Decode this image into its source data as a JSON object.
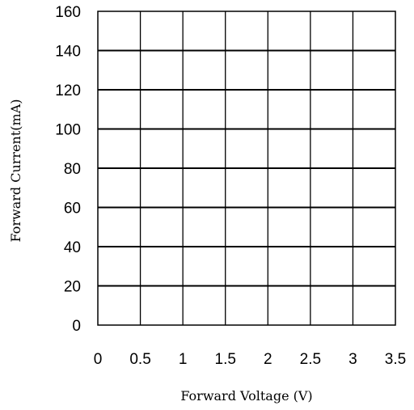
{
  "chart_data": {
    "type": "line",
    "title": "",
    "xlabel": "Forward Voltage (V)",
    "ylabel": "Forward Current(mA)",
    "xlim": [
      0,
      3.5
    ],
    "ylim": [
      0,
      160
    ],
    "x_ticks": [
      0,
      0.5,
      1,
      1.5,
      2,
      2.5,
      3,
      3.5
    ],
    "x_tick_labels": [
      "0",
      "0.5",
      "1",
      "1.5",
      "2",
      "2.5",
      "3",
      "3.5"
    ],
    "y_ticks": [
      0,
      20,
      40,
      60,
      80,
      100,
      120,
      140,
      160
    ],
    "y_tick_labels": [
      "0",
      "20",
      "40",
      "60",
      "80",
      "100",
      "120",
      "140",
      "160"
    ],
    "grid": true,
    "series": [],
    "colors": {
      "grid": "#000000",
      "text": "#000000",
      "background": "#ffffff"
    }
  }
}
